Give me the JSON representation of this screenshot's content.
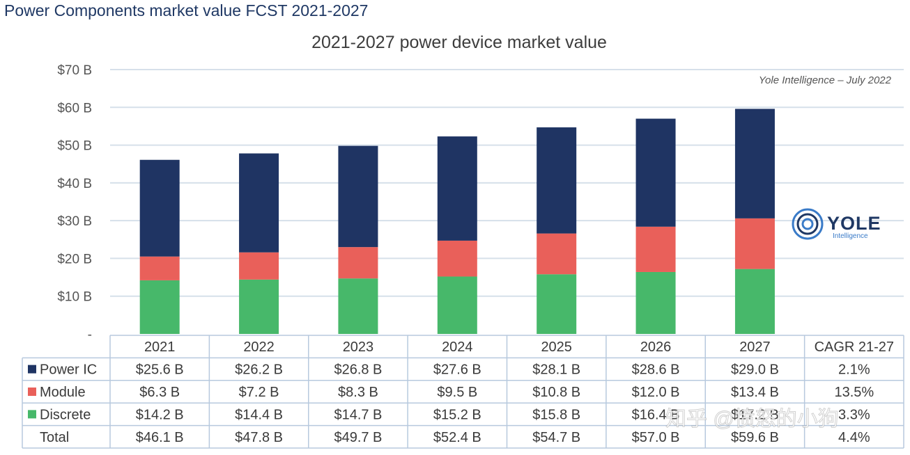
{
  "page_title": "Power Components market value FCST 2021-2027",
  "chart_data": {
    "type": "bar",
    "stacked": true,
    "title": "2021-2027 power device market value",
    "source": "Yole Intelligence – July 2022",
    "categories": [
      "2021",
      "2022",
      "2023",
      "2024",
      "2025",
      "2026",
      "2027"
    ],
    "y_ticks": [
      "-",
      "$10 B",
      "$20 B",
      "$30 B",
      "$40 B",
      "$50 B",
      "$60 B",
      "$70 B"
    ],
    "ylim": [
      0,
      70
    ],
    "series": [
      {
        "name": "Discrete",
        "color": "#47b86a",
        "values": [
          14.2,
          14.4,
          14.7,
          15.2,
          15.8,
          16.4,
          17.2
        ]
      },
      {
        "name": "Module",
        "color": "#e9605a",
        "values": [
          6.3,
          7.2,
          8.3,
          9.5,
          10.8,
          12.0,
          13.4
        ]
      },
      {
        "name": "Power IC",
        "color": "#1f3463",
        "values": [
          25.6,
          26.2,
          26.8,
          27.6,
          28.1,
          28.6,
          29.0
        ]
      }
    ]
  },
  "table": {
    "extra_header": "CAGR 21-27",
    "rows": [
      {
        "name": "Power IC",
        "swatch": "#1f3463",
        "cells": [
          "$25.6 B",
          "$26.2 B",
          "$26.8 B",
          "$27.6 B",
          "$28.1 B",
          "$28.6 B",
          "$29.0 B",
          "2.1%"
        ]
      },
      {
        "name": "Module",
        "swatch": "#e9605a",
        "cells": [
          "$6.3 B",
          "$7.2 B",
          "$8.3 B",
          "$9.5 B",
          "$10.8 B",
          "$12.0 B",
          "$13.4 B",
          "13.5%"
        ]
      },
      {
        "name": "Discrete",
        "swatch": "#47b86a",
        "cells": [
          "$14.2 B",
          "$14.4 B",
          "$14.7 B",
          "$15.2 B",
          "$15.8 B",
          "$16.4 B",
          "$17.2 B",
          "3.3%"
        ]
      },
      {
        "name": "Total",
        "swatch": "",
        "cells": [
          "$46.1 B",
          "$47.8 B",
          "$49.7 B",
          "$52.4 B",
          "$54.7 B",
          "$57.0 B",
          "$59.6 B",
          "4.4%"
        ]
      }
    ]
  },
  "logo": {
    "name": "YOLE",
    "sub": "Intelligence"
  },
  "watermark": "知乎 @愤怒的小狗"
}
